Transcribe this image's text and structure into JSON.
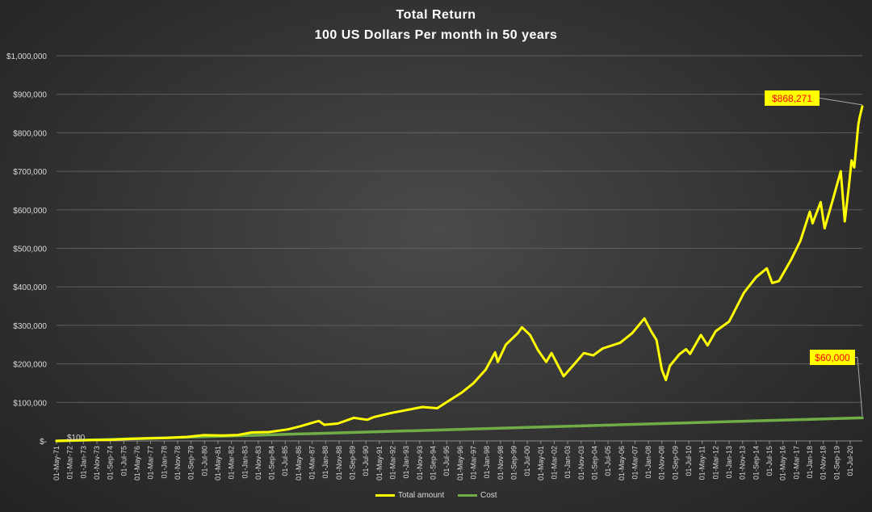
{
  "chart_data": {
    "type": "line",
    "title": "Total   Return",
    "subtitle": "100 US Dollars Per month in 50 years",
    "ylim": [
      0,
      1000000
    ],
    "y_ticks": [
      {
        "value": 0,
        "label": "$-"
      },
      {
        "value": 100000,
        "label": "$100,000"
      },
      {
        "value": 200000,
        "label": "$200,000"
      },
      {
        "value": 300000,
        "label": "$300,000"
      },
      {
        "value": 400000,
        "label": "$400,000"
      },
      {
        "value": 500000,
        "label": "$500,000"
      },
      {
        "value": 600000,
        "label": "$600,000"
      },
      {
        "value": 700000,
        "label": "$700,000"
      },
      {
        "value": 800000,
        "label": "$800,000"
      },
      {
        "value": 900000,
        "label": "$900,000"
      },
      {
        "value": 1000000,
        "label": "$1,000,000"
      }
    ],
    "x_start": "1971-05",
    "x_end": "2021-04",
    "x_tick_labels": [
      "01-May-71",
      "01-Mar-72",
      "01-Jan-73",
      "01-Nov-73",
      "01-Sep-74",
      "01-Jul-75",
      "01-May-76",
      "01-Mar-77",
      "01-Jan-78",
      "01-Nov-78",
      "01-Sep-79",
      "01-Jul-80",
      "01-May-81",
      "01-Mar-82",
      "01-Jan-83",
      "01-Nov-83",
      "01-Sep-84",
      "01-Jul-85",
      "01-May-86",
      "01-Mar-87",
      "01-Jan-88",
      "01-Nov-88",
      "01-Sep-89",
      "01-Jul-90",
      "01-May-91",
      "01-Mar-92",
      "01-Jan-93",
      "01-Nov-93",
      "01-Sep-94",
      "01-Jul-95",
      "01-May-96",
      "01-Mar-97",
      "01-Jan-98",
      "01-Nov-98",
      "01-Sep-99",
      "01-Jul-00",
      "01-May-01",
      "01-Mar-02",
      "01-Jan-03",
      "01-Nov-03",
      "01-Sep-04",
      "01-Jul-05",
      "01-May-06",
      "01-Mar-07",
      "01-Jan-08",
      "01-Nov-08",
      "01-Sep-09",
      "01-Jul-10",
      "01-May-11",
      "01-Mar-12",
      "01-Jan-13",
      "01-Nov-13",
      "01-Sep-14",
      "01-Jul-15",
      "01-May-16",
      "01-Mar-17",
      "01-Jan-18",
      "01-Nov-18",
      "01-Sep-19",
      "01-Jul-20"
    ],
    "grid": true,
    "legend_position": "bottom",
    "series": [
      {
        "name": "Total  amount",
        "color": "#ffff00",
        "points": [
          [
            "1971-05",
            100
          ],
          [
            "1972-06",
            1300
          ],
          [
            "1973-06",
            2400
          ],
          [
            "1974-09",
            3000
          ],
          [
            "1975-12",
            5500
          ],
          [
            "1977-01",
            7000
          ],
          [
            "1978-03",
            8000
          ],
          [
            "1979-06",
            10500
          ],
          [
            "1980-07",
            15000
          ],
          [
            "1981-09",
            14000
          ],
          [
            "1982-08",
            15500
          ],
          [
            "1983-06",
            22000
          ],
          [
            "1984-07",
            23000
          ],
          [
            "1985-09",
            30000
          ],
          [
            "1986-06",
            38000
          ],
          [
            "1987-08",
            52000
          ],
          [
            "1987-12",
            42000
          ],
          [
            "1988-10",
            45000
          ],
          [
            "1989-10",
            60000
          ],
          [
            "1990-08",
            55000
          ],
          [
            "1991-01",
            62000
          ],
          [
            "1992-01",
            72000
          ],
          [
            "1993-01",
            80000
          ],
          [
            "1994-01",
            88000
          ],
          [
            "1994-12",
            85000
          ],
          [
            "1995-09",
            105000
          ],
          [
            "1996-06",
            125000
          ],
          [
            "1997-03",
            150000
          ],
          [
            "1997-12",
            185000
          ],
          [
            "1998-07",
            230000
          ],
          [
            "1998-09",
            205000
          ],
          [
            "1999-03",
            250000
          ],
          [
            "1999-12",
            280000
          ],
          [
            "2000-03",
            295000
          ],
          [
            "2000-09",
            275000
          ],
          [
            "2001-03",
            235000
          ],
          [
            "2001-09",
            205000
          ],
          [
            "2002-01",
            228000
          ],
          [
            "2002-10",
            168000
          ],
          [
            "2003-06",
            200000
          ],
          [
            "2004-01",
            228000
          ],
          [
            "2004-08",
            222000
          ],
          [
            "2005-03",
            240000
          ],
          [
            "2006-04",
            255000
          ],
          [
            "2007-01",
            280000
          ],
          [
            "2007-10",
            318000
          ],
          [
            "2008-03",
            285000
          ],
          [
            "2008-07",
            262000
          ],
          [
            "2008-11",
            185000
          ],
          [
            "2009-02",
            158000
          ],
          [
            "2009-05",
            195000
          ],
          [
            "2009-12",
            225000
          ],
          [
            "2010-05",
            238000
          ],
          [
            "2010-08",
            226000
          ],
          [
            "2011-04",
            275000
          ],
          [
            "2011-09",
            248000
          ],
          [
            "2012-03",
            285000
          ],
          [
            "2013-01",
            310000
          ],
          [
            "2013-12",
            385000
          ],
          [
            "2014-09",
            425000
          ],
          [
            "2015-05",
            448000
          ],
          [
            "2015-09",
            410000
          ],
          [
            "2016-02",
            415000
          ],
          [
            "2016-11",
            470000
          ],
          [
            "2017-06",
            520000
          ],
          [
            "2018-01",
            595000
          ],
          [
            "2018-03",
            565000
          ],
          [
            "2018-09",
            620000
          ],
          [
            "2018-12",
            552000
          ],
          [
            "2019-06",
            625000
          ],
          [
            "2019-12",
            700000
          ],
          [
            "2020-03",
            570000
          ],
          [
            "2020-06",
            660000
          ],
          [
            "2020-08",
            728000
          ],
          [
            "2020-10",
            710000
          ],
          [
            "2021-01",
            820000
          ],
          [
            "2021-02",
            840000
          ],
          [
            "2021-04",
            868271
          ]
        ]
      },
      {
        "name": "Cost",
        "color": "#70ad47",
        "points": [
          [
            "1971-05",
            100
          ],
          [
            "2021-04",
            60000
          ]
        ]
      }
    ],
    "annotations": [
      {
        "label": "$868,271",
        "value": 868271
      },
      {
        "label": "$60,000",
        "value": 60000
      },
      {
        "label": "$100",
        "value": 100
      }
    ]
  }
}
